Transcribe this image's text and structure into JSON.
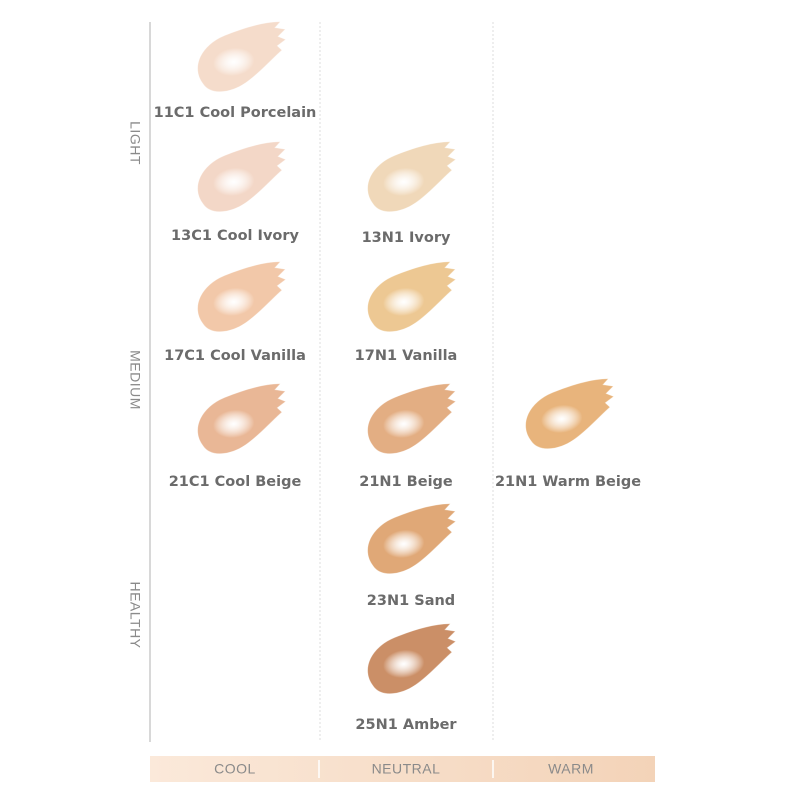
{
  "row_labels": [
    "LIGHT",
    "MEDIUM",
    "HEALTHY"
  ],
  "column_labels": [
    "COOL",
    "NEUTRAL",
    "WARM"
  ],
  "swatches": [
    {
      "label": "11C1 Cool Porcelain",
      "color": "#f5dccb"
    },
    {
      "label": "13C1 Cool Ivory",
      "color": "#f3d7c7"
    },
    {
      "label": "13N1 Ivory",
      "color": "#f0d8b9"
    },
    {
      "label": "17C1 Cool Vanilla",
      "color": "#f2c8a9"
    },
    {
      "label": "17N1 Vanilla",
      "color": "#edc893"
    },
    {
      "label": "21C1 Cool Beige",
      "color": "#e9b796"
    },
    {
      "label": "21N1 Beige",
      "color": "#e3ae83"
    },
    {
      "label": "21N1 Warm Beige",
      "color": "#e8b47c"
    },
    {
      "label": "23N1 Sand",
      "color": "#e0a877"
    },
    {
      "label": "25N1 Amber",
      "color": "#cb8f67"
    }
  ]
}
